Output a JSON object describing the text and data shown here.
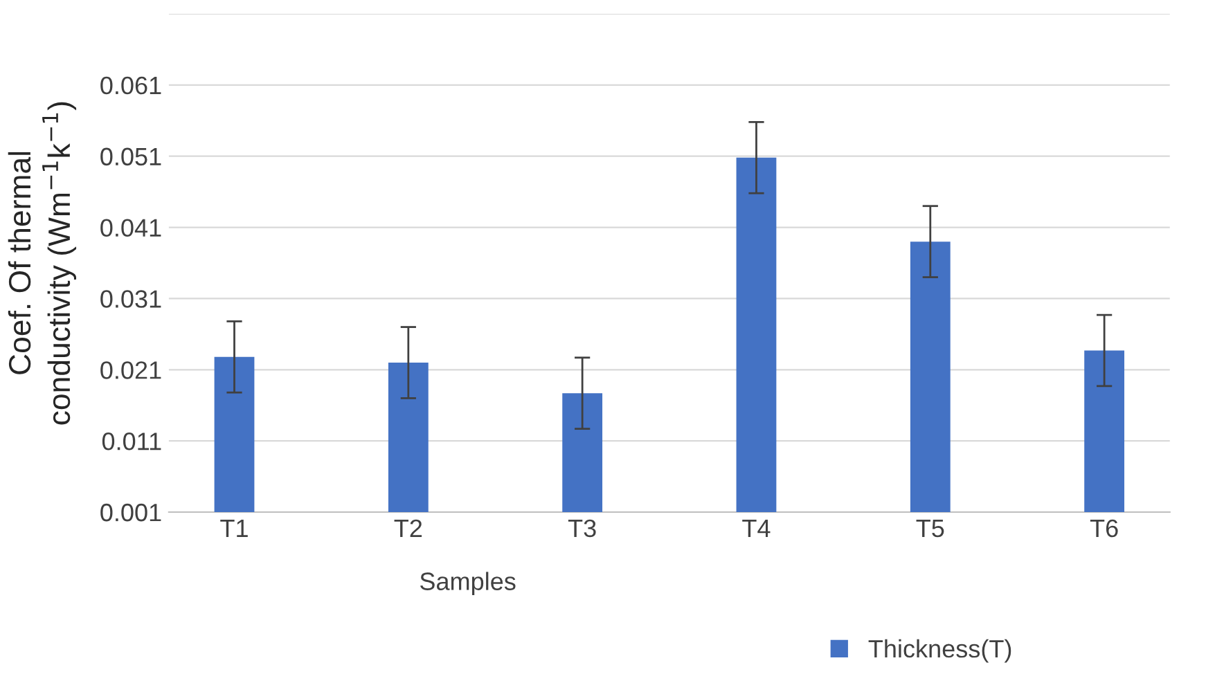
{
  "chart_data": {
    "type": "bar",
    "xlabel": "Samples",
    "ylabel": "Coef. Of thermal\nconductivity (Wm$^{−1}$k$^{−1}$)",
    "categories": [
      "T1",
      "T2",
      "T3",
      "T4",
      "T5",
      "T6"
    ],
    "series": [
      {
        "name": "Thickness(T)",
        "color": "#4472c4",
        "values": [
          0.0228,
          0.022,
          0.0177,
          0.0508,
          0.039,
          0.0237
        ],
        "errors": [
          0.005,
          0.005,
          0.005,
          0.005,
          0.005,
          0.005
        ]
      }
    ],
    "ylim": [
      0.001,
      0.071
    ],
    "yticks": [
      0.001,
      0.011,
      0.021,
      0.031,
      0.041,
      0.051,
      0.061,
      {
        "value": 0.071,
        "label": null
      }
    ],
    "grid": "y",
    "legend": "bottom right"
  }
}
